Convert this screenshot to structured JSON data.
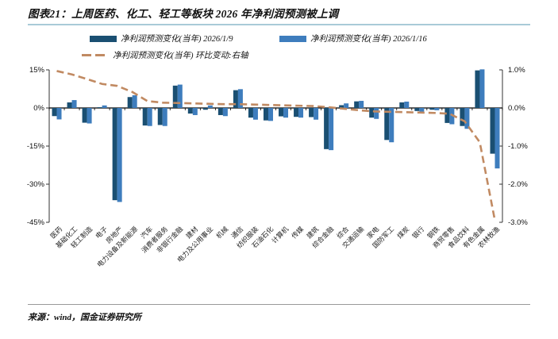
{
  "header": {
    "title": "图表21：上周医药、化工、轻工等板块 2026 年净利润预测被上调"
  },
  "legend": {
    "series1": "净利润预测变化(当年) 2026/1/9",
    "series2": "净利润预测变化(当年) 2026/1/16",
    "line": "净利润预测变化(当年) 环比变动:右轴"
  },
  "colors": {
    "series1": "#1a4f72",
    "series2": "#3e7dbd",
    "line": "#c18a62",
    "axis": "#333333",
    "zero_line": "#000000",
    "title_rule": "#a9cbd8",
    "source_rule": "#9a9a9a"
  },
  "chart_data": {
    "type": "bar",
    "title": "上周医药、化工、轻工等板块2026年净利润预测被上调",
    "legend_position": "top",
    "grid": "off",
    "categories": [
      "医药",
      "基础化工",
      "轻工制造",
      "电子",
      "房地产",
      "电力设备及新能源",
      "汽车",
      "消费者服务",
      "非银行金融",
      "建材",
      "电力及公用事业",
      "机械",
      "通信",
      "纺织服装",
      "石油石化",
      "计算机",
      "传媒",
      "建筑",
      "综合金融",
      "综合",
      "交通运输",
      "家电",
      "国防军工",
      "煤炭",
      "银行",
      "钢铁",
      "商贸零售",
      "食品饮料",
      "有色金属",
      "农林牧渔"
    ],
    "series": [
      {
        "name": "净利润预测变化(当年) 2026/1/9",
        "type": "bar",
        "axis": "left",
        "values": [
          -3.2,
          2.2,
          -5.8,
          0.3,
          -36.3,
          4.3,
          -6.9,
          -6.7,
          8.8,
          -2.2,
          -0.7,
          -2.8,
          7.0,
          -3.8,
          -4.9,
          -3.3,
          -3.5,
          -3.6,
          -16.2,
          1.1,
          2.6,
          -3.8,
          -12.6,
          2.2,
          -1.2,
          -0.7,
          -5.9,
          -7.1,
          14.8,
          -18.0
        ]
      },
      {
        "name": "净利润预测变化(当年) 2026/1/16",
        "type": "bar",
        "axis": "left",
        "values": [
          -4.5,
          3.1,
          -6.1,
          1.0,
          -37.0,
          5.0,
          -7.1,
          -7.1,
          9.2,
          -2.8,
          1.0,
          -3.2,
          7.4,
          -4.6,
          -5.1,
          -3.8,
          -3.8,
          -4.6,
          -16.6,
          1.8,
          2.8,
          -4.3,
          -13.5,
          2.5,
          -1.5,
          -0.9,
          -6.4,
          -8.2,
          15.2,
          -23.8
        ]
      },
      {
        "name": "净利润预测变化(当年) 环比变动:右轴",
        "type": "dashed-line",
        "axis": "right",
        "values": [
          0.97,
          0.88,
          0.76,
          0.63,
          0.58,
          0.42,
          0.18,
          0.14,
          0.13,
          0.12,
          0.11,
          0.1,
          0.1,
          0.09,
          0.08,
          0.07,
          0.06,
          0.05,
          0.02,
          -0.02,
          -0.06,
          -0.09,
          -0.1,
          -0.11,
          -0.12,
          -0.13,
          -0.15,
          -0.35,
          -0.9,
          -2.95
        ]
      }
    ],
    "left_axis": {
      "unit": "%",
      "range": [
        -45,
        15
      ],
      "tick_values": [
        15,
        0,
        -15,
        -30,
        -45
      ],
      "tick_labels": [
        "15%",
        "0%",
        "-15%",
        "-30%",
        "-45%"
      ]
    },
    "right_axis": {
      "unit": "%",
      "range": [
        -3,
        1
      ],
      "tick_values": [
        1,
        0,
        -1,
        -2,
        -3
      ],
      "tick_labels": [
        "1.0%",
        "0.0%",
        "-1.0%",
        "-2.0%",
        "-3.0%"
      ]
    }
  },
  "footer": {
    "source": "来源：wind，国金证券研究所"
  }
}
